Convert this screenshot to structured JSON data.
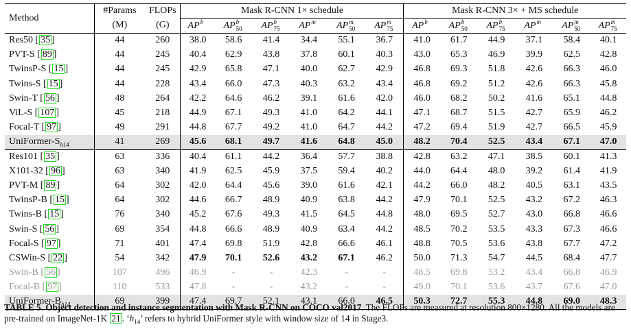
{
  "header": {
    "method": "Method",
    "params": "#Params",
    "params_unit": "(M)",
    "flops": "FLOPs",
    "flops_unit": "(G)",
    "group1": "Mask R-CNN 1× schedule",
    "group2": "Mask R-CNN 3× + MS schedule",
    "metrics": [
      {
        "base": "AP",
        "sup": "b",
        "sub": ""
      },
      {
        "base": "AP",
        "sup": "b",
        "sub": "50"
      },
      {
        "base": "AP",
        "sup": "b",
        "sub": "75"
      },
      {
        "base": "AP",
        "sup": "m",
        "sub": ""
      },
      {
        "base": "AP",
        "sup": "m",
        "sub": "50"
      },
      {
        "base": "AP",
        "sup": "m",
        "sub": "75"
      }
    ]
  },
  "rows": [
    {
      "name": "Res50",
      "ref": "35",
      "params": "44",
      "flops": "260",
      "v": [
        "38.0",
        "58.6",
        "41.4",
        "34.4",
        "55.1",
        "36.7",
        "41.0",
        "61.7",
        "44.9",
        "37.1",
        "58.4",
        "40.1"
      ]
    },
    {
      "name": "PVT-S",
      "ref": "89",
      "params": "44",
      "flops": "245",
      "v": [
        "40.4",
        "62.9",
        "43.8",
        "37.8",
        "60.1",
        "40.3",
        "43.0",
        "65.3",
        "46.9",
        "39.9",
        "62.5",
        "42.8"
      ]
    },
    {
      "name": "TwinsP-S",
      "ref": "15",
      "params": "44",
      "flops": "245",
      "v": [
        "42.9",
        "65.8",
        "47.1",
        "40.0",
        "62.7",
        "42.9",
        "46.8",
        "69.3",
        "51.8",
        "42.6",
        "66.3",
        "46.0"
      ]
    },
    {
      "name": "Twins-S",
      "ref": "15",
      "params": "44",
      "flops": "228",
      "v": [
        "43.4",
        "66.0",
        "47.3",
        "40.3",
        "63.2",
        "43.4",
        "46.8",
        "69.2",
        "51.2",
        "42.6",
        "66.3",
        "45.8"
      ]
    },
    {
      "name": "Swin-T",
      "ref": "56",
      "params": "48",
      "flops": "264",
      "v": [
        "42.2",
        "64.6",
        "46.2",
        "39.1",
        "61.6",
        "42.0",
        "46.0",
        "68.2",
        "50.2",
        "41.6",
        "65.1",
        "44.8"
      ]
    },
    {
      "name": "ViL-S",
      "ref": "107",
      "params": "45",
      "flops": "218",
      "v": [
        "44.9",
        "67.1",
        "49.3",
        "41.0",
        "64.2",
        "44.1",
        "47.1",
        "68.7",
        "51.5",
        "42.7",
        "65.9",
        "46.2"
      ]
    },
    {
      "name": "Focal-T",
      "ref": "97",
      "params": "49",
      "flops": "291",
      "v": [
        "44.8",
        "67.7",
        "49.2",
        "41.0",
        "64.7",
        "44.2",
        "47.2",
        "69.4",
        "51.9",
        "42.7",
        "66.5",
        "45.9"
      ]
    },
    {
      "name": "UniFormer-S",
      "sub": "h14",
      "params": "41",
      "flops": "269",
      "highlight": true,
      "v": [
        "45.6",
        "68.1",
        "49.7",
        "41.6",
        "64.8",
        "45.0",
        "48.2",
        "70.4",
        "52.5",
        "43.4",
        "67.1",
        "47.0"
      ],
      "bold": [
        0,
        1,
        2,
        3,
        4,
        5,
        6,
        7,
        8,
        9,
        10,
        11
      ]
    },
    {
      "name": "Res101",
      "ref": "35",
      "params": "63",
      "flops": "336",
      "v": [
        "40.4",
        "61.1",
        "44.2",
        "36.4",
        "57.7",
        "38.8",
        "42.8",
        "63.2",
        "47.1",
        "38.5",
        "60.1",
        "41.3"
      ]
    },
    {
      "name": "X101-32",
      "ref": "96",
      "params": "63",
      "flops": "340",
      "v": [
        "41.9",
        "62.5",
        "45.9",
        "37.5",
        "59.4",
        "40.2",
        "44.0",
        "64.4",
        "48.0",
        "39.2",
        "61.4",
        "41.9"
      ]
    },
    {
      "name": "PVT-M",
      "ref": "89",
      "params": "64",
      "flops": "302",
      "v": [
        "42.0",
        "64.4",
        "45.6",
        "39.0",
        "61.6",
        "42.1",
        "44.2",
        "66.0",
        "48.2",
        "40.5",
        "63.1",
        "43.5"
      ]
    },
    {
      "name": "TwinsP-B",
      "ref": "15",
      "params": "64",
      "flops": "302",
      "v": [
        "44.6",
        "66.7",
        "48.9",
        "40.9",
        "63.8",
        "44.2",
        "47.9",
        "70.1",
        "52.5",
        "43.2",
        "67.2",
        "46.3"
      ]
    },
    {
      "name": "Twins-B",
      "ref": "15",
      "params": "76",
      "flops": "340",
      "v": [
        "45.2",
        "67.6",
        "49.3",
        "41.5",
        "64.5",
        "44.8",
        "48.0",
        "69.5",
        "52.7",
        "43.0",
        "66.8",
        "46.6"
      ]
    },
    {
      "name": "Swin-S",
      "ref": "56",
      "params": "69",
      "flops": "354",
      "v": [
        "44.8",
        "66.6",
        "48.9",
        "40.9",
        "63.4",
        "44.2",
        "48.5",
        "70.2",
        "53.5",
        "43.3",
        "67.3",
        "46.6"
      ]
    },
    {
      "name": "Focal-S",
      "ref": "97",
      "params": "71",
      "flops": "401",
      "v": [
        "47.4",
        "69.8",
        "51.9",
        "42.8",
        "66.6",
        "46.1",
        "48.8",
        "70.5",
        "53.6",
        "43.8",
        "67.7",
        "47.2"
      ]
    },
    {
      "name": "CSWin-S",
      "ref": "22",
      "params": "54",
      "flops": "342",
      "v": [
        "47.9",
        "70.1",
        "52.6",
        "43.2",
        "67.1",
        "46.2",
        "50.0",
        "71.3",
        "54.7",
        "44.5",
        "68.4",
        "47.7"
      ],
      "bold": [
        0,
        1,
        2,
        3,
        4
      ]
    },
    {
      "name": "Swin-B",
      "ref": "56",
      "params": "107",
      "flops": "496",
      "gray": true,
      "v": [
        "46.9",
        "-",
        "-",
        "42.3",
        "-",
        "-",
        "48.5",
        "69.8",
        "53.2",
        "43.4",
        "66.8",
        "46.9"
      ]
    },
    {
      "name": "Focal-B",
      "ref": "97",
      "params": "110",
      "flops": "533",
      "gray": true,
      "v": [
        "47.8",
        "-",
        "-",
        "43.2",
        "-",
        "-",
        "49.0",
        "70.1",
        "53.6",
        "43.7",
        "67.6",
        "47.0"
      ]
    },
    {
      "name": "UniFormer-B",
      "sub": "h14",
      "params": "69",
      "flops": "399",
      "highlight": true,
      "v": [
        "47.4",
        "69.7",
        "52.1",
        "43.1",
        "66.0",
        "46.5",
        "50.3",
        "72.7",
        "55.3",
        "44.8",
        "69.0",
        "48.3"
      ],
      "bold": [
        5,
        6,
        7,
        8,
        9,
        10,
        11
      ]
    }
  ],
  "caption": {
    "label": "TABLE 5. Object detection and instance segmentation with Mask R-CNN on COCO val2017.",
    "text1": " The FLOPs are measured at resolution 800×1280. All the models are pre-trained on ImageNet-1K ",
    "ref": "21",
    "text2": ". ‘",
    "h14": "h",
    "h14_sub": "14",
    "text3": "’ refers to hybrid UniFormer style with window size of 14 in Stage3."
  }
}
